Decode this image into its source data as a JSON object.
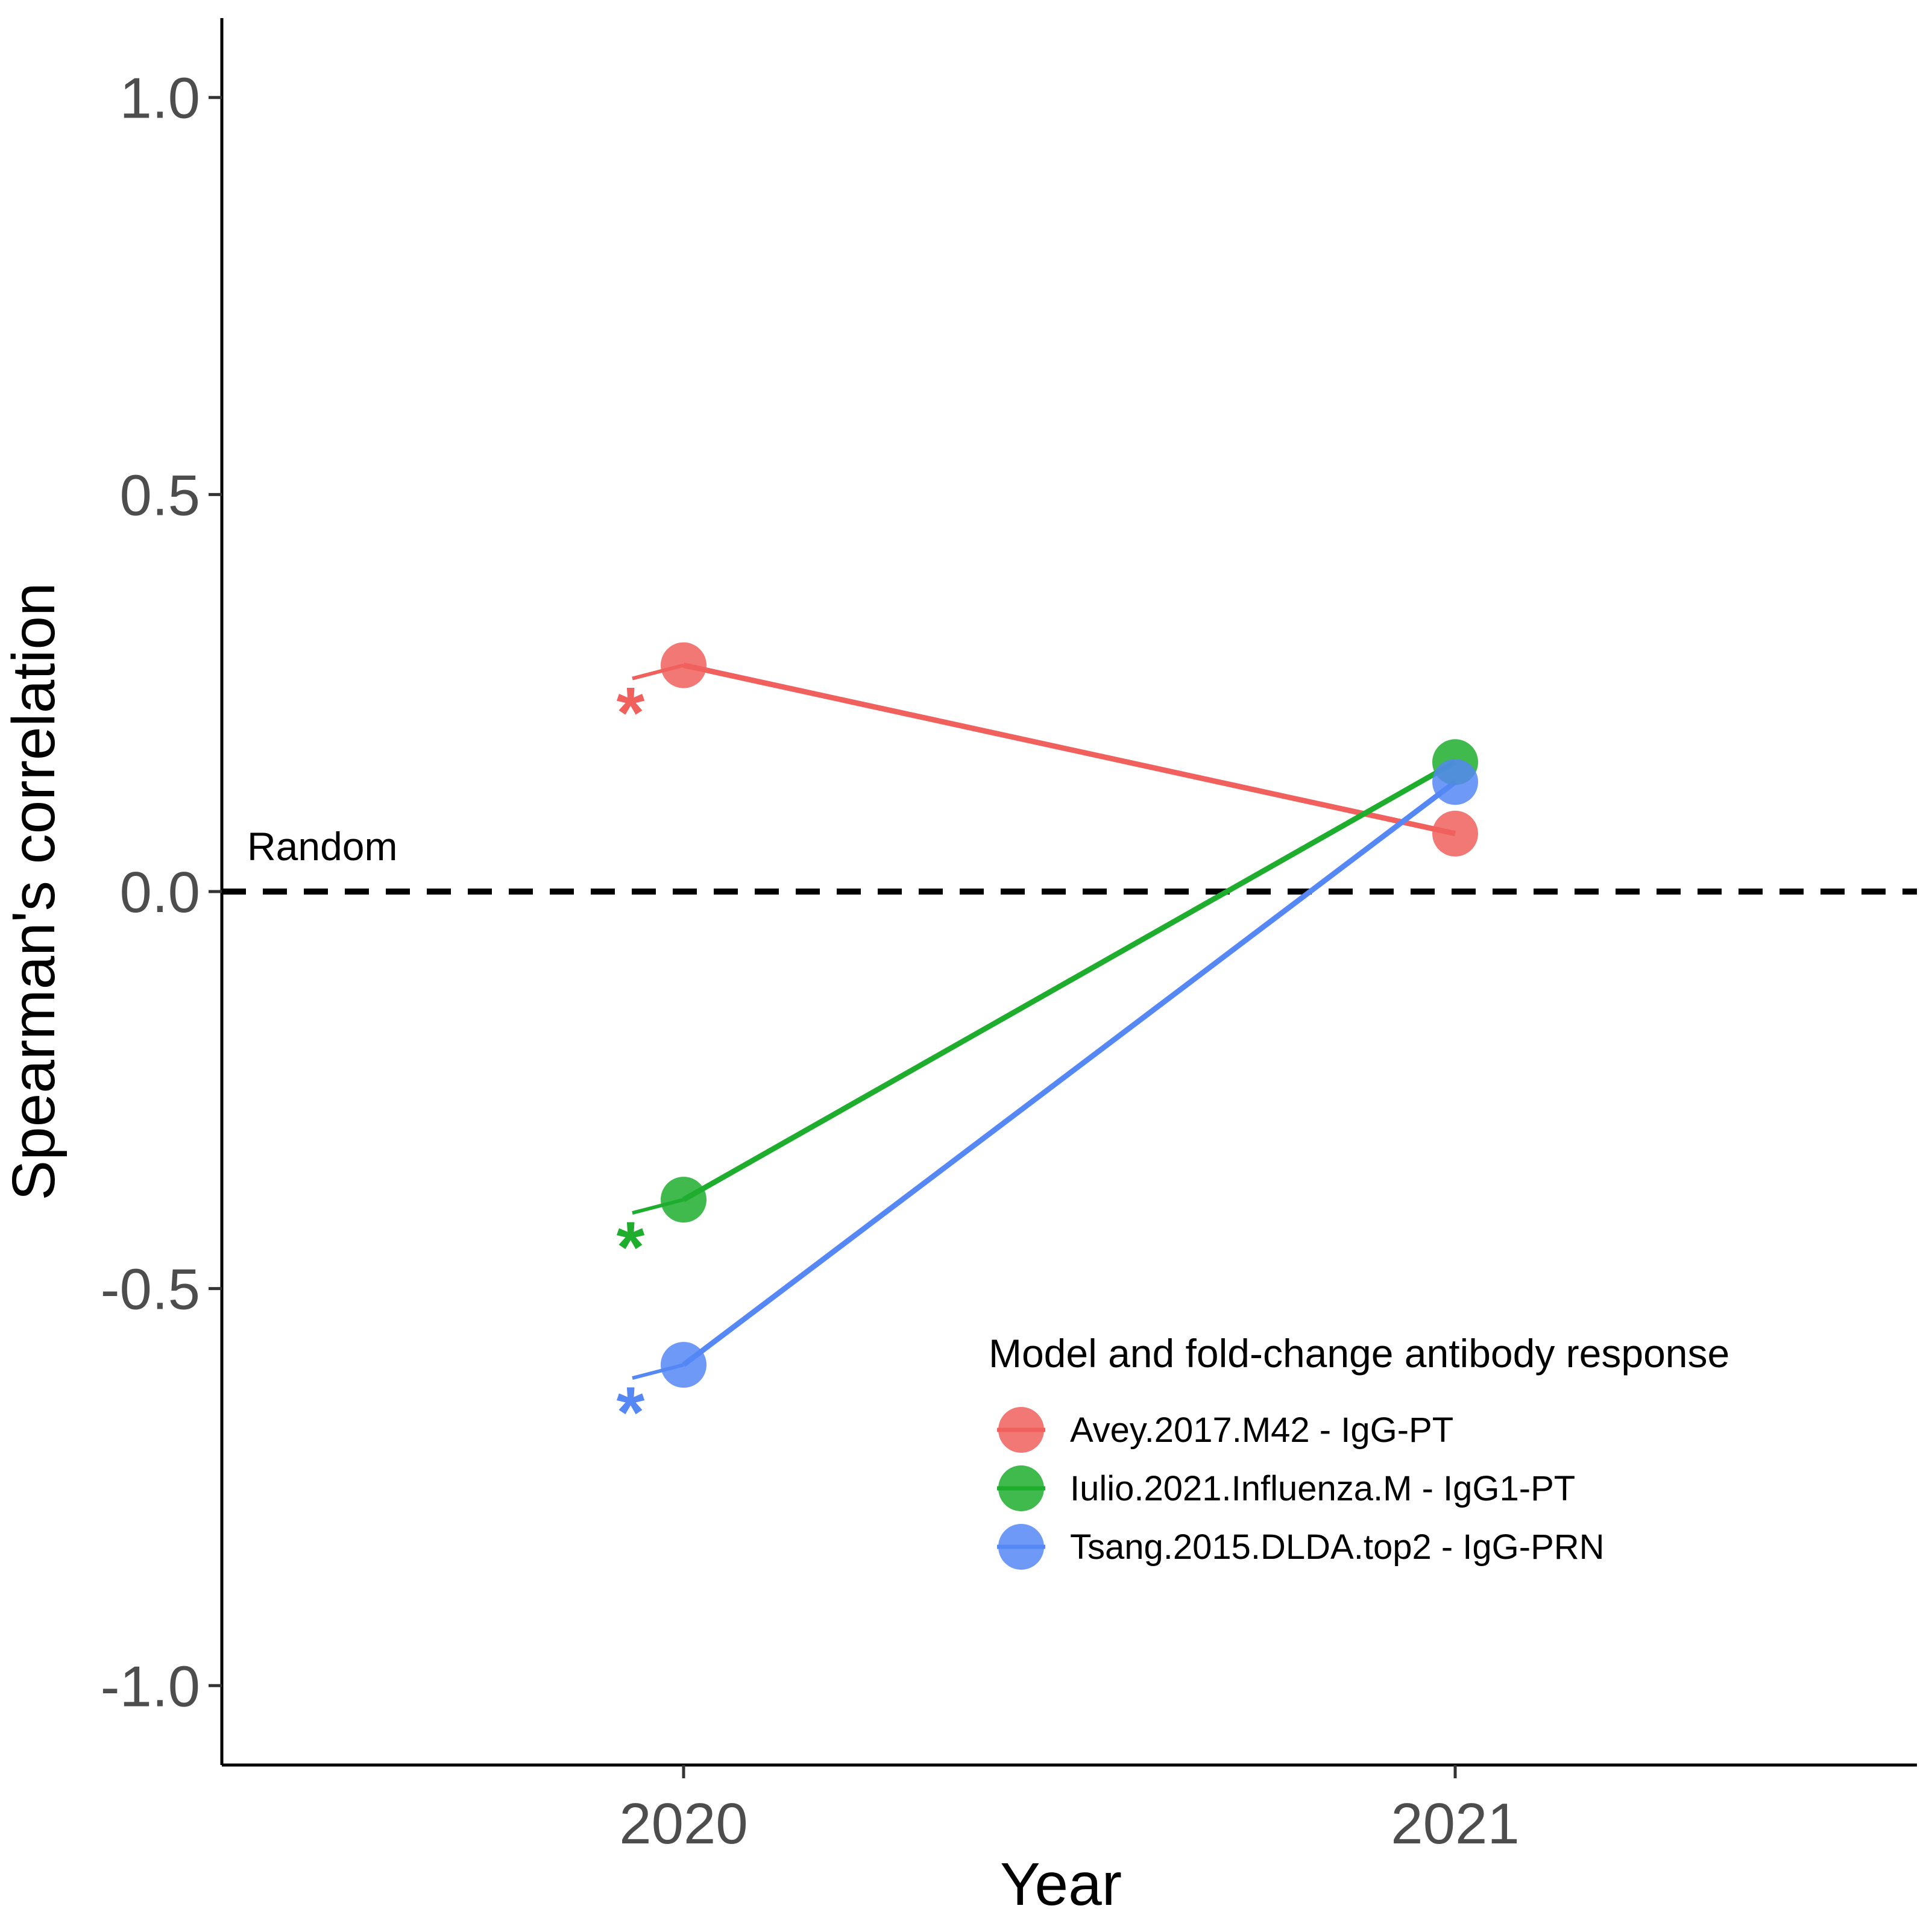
{
  "chart_data": {
    "type": "line",
    "xlabel": "Year",
    "ylabel": "Spearman's correlation",
    "categories": [
      "2020",
      "2021"
    ],
    "ylim": [
      -1.1,
      1.1
    ],
    "yticks": [
      "1.0",
      "0.5",
      "0.0",
      "-0.5",
      "-1.0"
    ],
    "ytick_values": [
      1.0,
      0.5,
      0.0,
      -0.5,
      -1.0
    ],
    "reference_line": {
      "y": 0.0,
      "label": "Random",
      "style": "dashed",
      "color": "#000000"
    },
    "legend": {
      "title": "Model and fold-change antibody response",
      "placement": "bottom-right"
    },
    "grid": false,
    "series": [
      {
        "name": "Avey.2017.M42 - IgG-PT",
        "color": "#F0605D",
        "values": [
          0.285,
          0.073
        ],
        "significance": [
          "*",
          ""
        ]
      },
      {
        "name": "Iulio.2021.Influenza.M - IgG1-PT",
        "color": "#1FAD2E",
        "values": [
          -0.388,
          0.163
        ],
        "significance": [
          "*",
          ""
        ]
      },
      {
        "name": "Tsang.2015.DLDA.top2 - IgG-PRN",
        "color": "#5587F5",
        "values": [
          -0.596,
          0.138
        ],
        "significance": [
          "*",
          ""
        ]
      }
    ]
  }
}
